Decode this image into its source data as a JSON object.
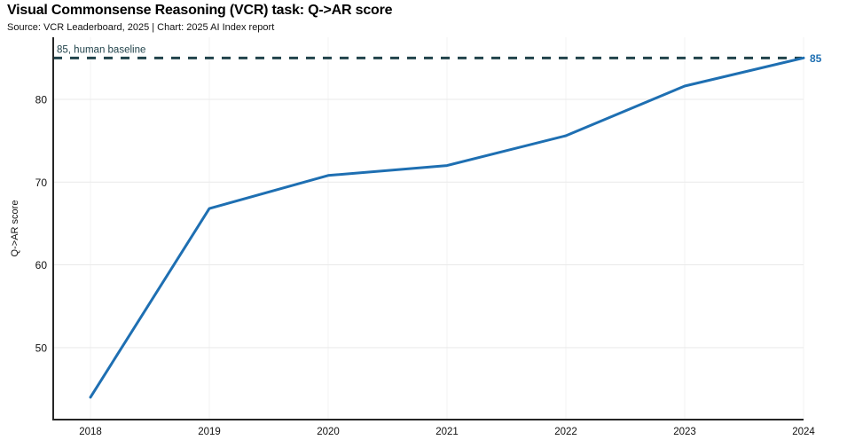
{
  "header": {
    "title": "Visual Commonsense Reasoning (VCR) task: Q->AR score",
    "subtitle": "Source: VCR Leaderboard, 2025 | Chart: 2025 AI Index report"
  },
  "chart_data": {
    "type": "line",
    "title": "Visual Commonsense Reasoning (VCR) task: Q->AR score",
    "x": [
      2018,
      2019,
      2020,
      2021,
      2022,
      2023,
      2024
    ],
    "series": [
      {
        "name": "Q->AR score",
        "values": [
          44.0,
          66.8,
          70.8,
          72.0,
          75.6,
          81.6,
          85.0
        ],
        "color": "#1e6fb2"
      }
    ],
    "end_label": "85",
    "baseline": {
      "value": 85,
      "label": "85, human baseline",
      "color": "#21434b",
      "style": "dashed"
    },
    "xlabel": "",
    "ylabel": "Q->AR score",
    "yticks": [
      50,
      60,
      70,
      80
    ],
    "ylim": [
      41.3,
      87.5
    ],
    "grid": true,
    "legend": "none",
    "colors": {
      "line": "#1e6fb2",
      "baseline": "#21434b",
      "spine": "#262626",
      "grid_horizontal": "#e9e9e9",
      "grid_vertical": "#f3f3f3",
      "tick_text": "#111111"
    }
  }
}
